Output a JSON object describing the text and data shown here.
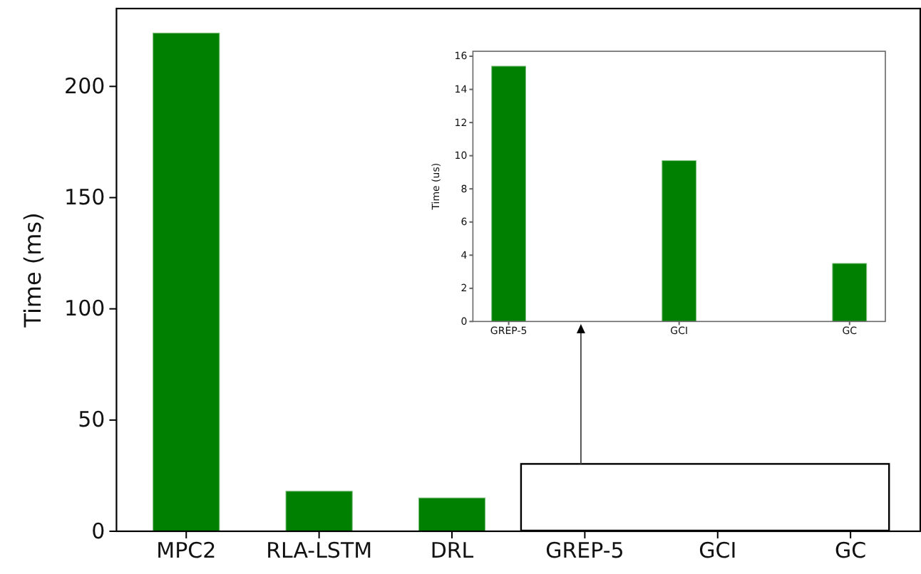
{
  "chart_data": [
    {
      "type": "bar",
      "ylabel": "Time (ms)",
      "categories": [
        "MPC2",
        "RLA-LSTM",
        "DRL",
        "GREP-5",
        "GCI",
        "GC"
      ],
      "values": [
        224,
        18,
        15,
        null,
        null,
        null
      ],
      "color": "#008000",
      "ylim": [
        0,
        235
      ],
      "yticks": [
        0,
        50,
        100,
        150,
        200
      ]
    },
    {
      "type": "bar",
      "ylabel": "Time (us)",
      "categories": [
        "GREP-5",
        "GCI",
        "GC"
      ],
      "values": [
        15.4,
        9.7,
        3.5
      ],
      "color": "#008000",
      "ylim": [
        0,
        16.3
      ],
      "yticks": [
        0,
        2,
        4,
        6,
        8,
        10,
        12,
        14,
        16
      ]
    }
  ]
}
